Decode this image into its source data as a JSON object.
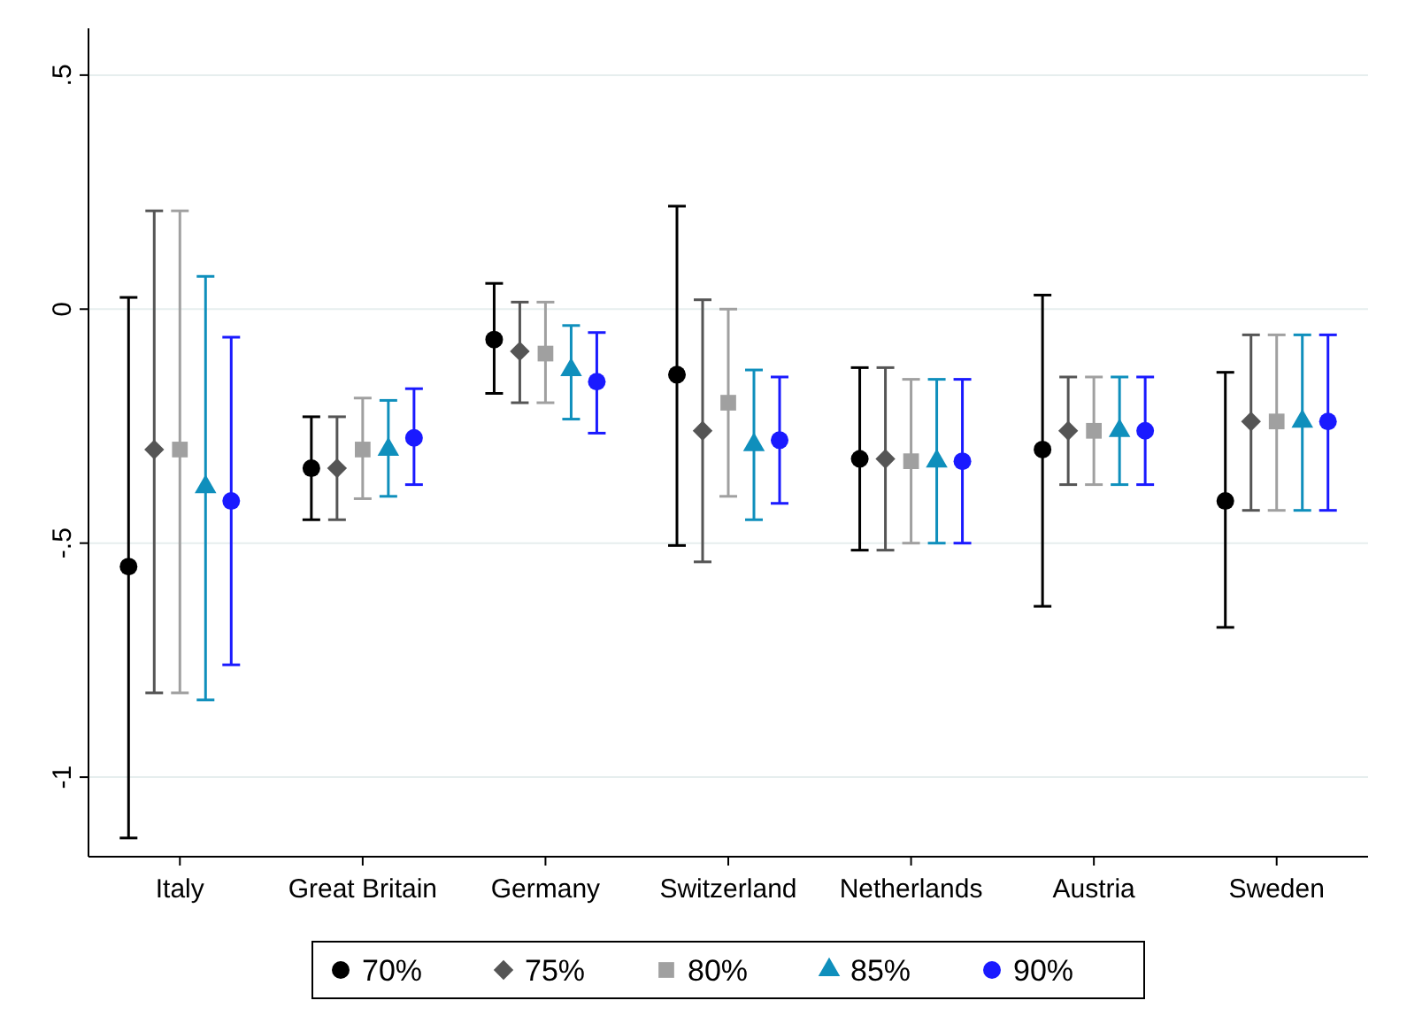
{
  "chart_data": {
    "type": "scatter",
    "categories": [
      "Italy",
      "Great Britain",
      "Germany",
      "Switzerland",
      "Netherlands",
      "Austria",
      "Sweden"
    ],
    "ylim": [
      -1.17,
      0.6
    ],
    "yticks": [
      {
        "value": -1,
        "label": "-1"
      },
      {
        "value": -0.5,
        "label": "-.5"
      },
      0,
      {
        "value": 0.5,
        "label": ".5"
      }
    ],
    "grid": "y",
    "legend": "bottom",
    "series": [
      {
        "name": "70%",
        "color": "#000000",
        "marker": "circle",
        "values": [
          -0.55,
          -0.34,
          -0.065,
          -0.14,
          -0.32,
          -0.3,
          -0.41
        ],
        "errors": [
          [
            -1.13,
            0.025
          ],
          [
            -0.45,
            -0.23
          ],
          [
            -0.18,
            0.055
          ],
          [
            -0.505,
            0.22
          ],
          [
            -0.515,
            -0.125
          ],
          [
            -0.635,
            0.03
          ],
          [
            -0.68,
            -0.135
          ]
        ]
      },
      {
        "name": "75%",
        "color": "#555555",
        "marker": "diamond",
        "values": [
          -0.3,
          -0.34,
          -0.09,
          -0.26,
          -0.32,
          -0.26,
          -0.24
        ],
        "errors": [
          [
            -0.82,
            0.21
          ],
          [
            -0.45,
            -0.23
          ],
          [
            -0.2,
            0.015
          ],
          [
            -0.54,
            0.02
          ],
          [
            -0.515,
            -0.125
          ],
          [
            -0.375,
            -0.145
          ],
          [
            -0.43,
            -0.055
          ]
        ]
      },
      {
        "name": "80%",
        "color": "#a0a0a0",
        "marker": "square",
        "values": [
          -0.3,
          -0.3,
          -0.095,
          -0.2,
          -0.325,
          -0.26,
          -0.24
        ],
        "errors": [
          [
            -0.82,
            0.21
          ],
          [
            -0.405,
            -0.19
          ],
          [
            -0.2,
            0.015
          ],
          [
            -0.4,
            0.0
          ],
          [
            -0.5,
            -0.15
          ],
          [
            -0.375,
            -0.145
          ],
          [
            -0.43,
            -0.055
          ]
        ]
      },
      {
        "name": "85%",
        "color": "#0f8fbc",
        "marker": "triangle",
        "values": [
          -0.38,
          -0.3,
          -0.13,
          -0.29,
          -0.325,
          -0.26,
          -0.24
        ],
        "errors": [
          [
            -0.835,
            0.07
          ],
          [
            -0.4,
            -0.195
          ],
          [
            -0.235,
            -0.035
          ],
          [
            -0.45,
            -0.13
          ],
          [
            -0.5,
            -0.15
          ],
          [
            -0.375,
            -0.145
          ],
          [
            -0.43,
            -0.055
          ]
        ]
      },
      {
        "name": "90%",
        "color": "#1a1aff",
        "marker": "circle",
        "values": [
          -0.41,
          -0.275,
          -0.155,
          -0.28,
          -0.325,
          -0.26,
          -0.24
        ],
        "errors": [
          [
            -0.76,
            -0.06
          ],
          [
            -0.375,
            -0.17
          ],
          [
            -0.265,
            -0.05
          ],
          [
            -0.415,
            -0.145
          ],
          [
            -0.5,
            -0.15
          ],
          [
            -0.375,
            -0.145
          ],
          [
            -0.43,
            -0.055
          ]
        ]
      }
    ]
  }
}
